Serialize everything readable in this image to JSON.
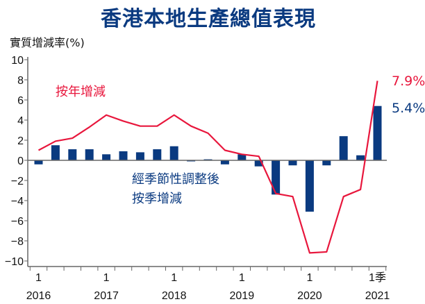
{
  "chart_data": {
    "type": "bar+line",
    "title": "香港本地生產總值表現",
    "ylabel": "實質增減率(%)",
    "ylim": [
      -10,
      10
    ],
    "yticks": [
      10,
      8,
      6,
      4,
      2,
      0,
      -2,
      -4,
      -6,
      -8,
      -10
    ],
    "categories": [
      "2016Q1",
      "2016Q2",
      "2016Q3",
      "2016Q4",
      "2017Q1",
      "2017Q2",
      "2017Q3",
      "2017Q4",
      "2018Q1",
      "2018Q2",
      "2018Q3",
      "2018Q4",
      "2019Q1",
      "2019Q2",
      "2019Q3",
      "2019Q4",
      "2020Q1",
      "2020Q2",
      "2020Q3",
      "2020Q4",
      "2021Q1"
    ],
    "xtick_labels": [
      {
        "quarter": "1",
        "year": "2016"
      },
      {
        "quarter": "1",
        "year": "2017"
      },
      {
        "quarter": "1",
        "year": "2018"
      },
      {
        "quarter": "1",
        "year": "2019"
      },
      {
        "quarter": "1",
        "year": "2020"
      },
      {
        "quarter": "1季",
        "year": "2021"
      }
    ],
    "series": [
      {
        "name": "按年增減",
        "type": "line",
        "color": "#e8163c",
        "values": [
          1.0,
          1.9,
          2.2,
          3.3,
          4.5,
          3.9,
          3.4,
          3.4,
          4.5,
          3.4,
          2.7,
          1.0,
          0.6,
          0.4,
          -3.3,
          -3.6,
          -9.2,
          -9.1,
          -3.6,
          -2.9,
          7.9
        ],
        "end_label": "7.9%"
      },
      {
        "name": "經季節性調整後按季增減",
        "type": "bar",
        "color": "#0a3a80",
        "values": [
          -0.4,
          1.5,
          1.1,
          1.1,
          0.6,
          0.9,
          0.8,
          1.1,
          1.4,
          -0.1,
          0.1,
          -0.4,
          0.6,
          -0.6,
          -3.4,
          -0.5,
          -5.1,
          -0.5,
          2.4,
          0.5,
          5.4
        ],
        "end_label": "5.4%"
      }
    ],
    "annotations": {
      "line_label": "按年增減",
      "bar_label_1": "經季節性調整後",
      "bar_label_2": "按季增減"
    }
  }
}
